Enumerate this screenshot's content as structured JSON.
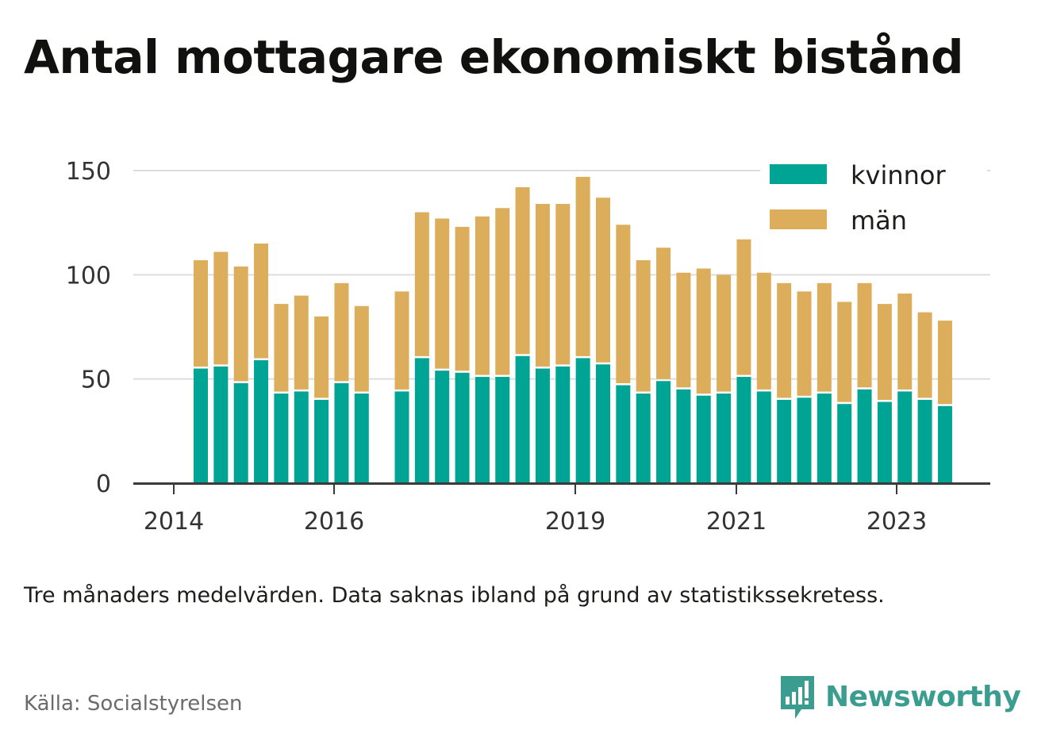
{
  "header": {
    "title": "Antal mottagare ekonomiskt bistånd"
  },
  "footer": {
    "caption": "Tre månaders medelvärden. Data saknas ibland på grund av statistikssekretess.",
    "source": "Källa: Socialstyrelsen",
    "brand": "Newsworthy"
  },
  "colors": {
    "kvinnor": "#00a494",
    "man": "#dcae5b",
    "grid": "#dddddd",
    "axis": "#3a3a3a",
    "brand": "#3a9d8f"
  },
  "chart_data": {
    "type": "bar",
    "stacked": true,
    "ylim": [
      0,
      150
    ],
    "yticks": [
      0,
      50,
      100,
      150
    ],
    "xticks": [
      "2014",
      "2016",
      "2019",
      "2021",
      "2023"
    ],
    "legend_position": "top-right",
    "grid": true,
    "series": [
      {
        "name": "kvinnor",
        "values": [
          55,
          56,
          48,
          59,
          43,
          44,
          40,
          48,
          43,
          null,
          44,
          60,
          54,
          53,
          51,
          51,
          61,
          55,
          56,
          60,
          57,
          47,
          43,
          49,
          45,
          42,
          43,
          51,
          44,
          40,
          41,
          43,
          38,
          45,
          39,
          44,
          40,
          37
        ]
      },
      {
        "name": "män",
        "values": [
          52,
          55,
          56,
          56,
          43,
          46,
          40,
          48,
          42,
          null,
          48,
          70,
          73,
          70,
          77,
          81,
          81,
          79,
          78,
          87,
          80,
          77,
          64,
          64,
          56,
          61,
          57,
          66,
          57,
          56,
          51,
          53,
          49,
          51,
          47,
          47,
          42,
          41
        ]
      }
    ]
  }
}
